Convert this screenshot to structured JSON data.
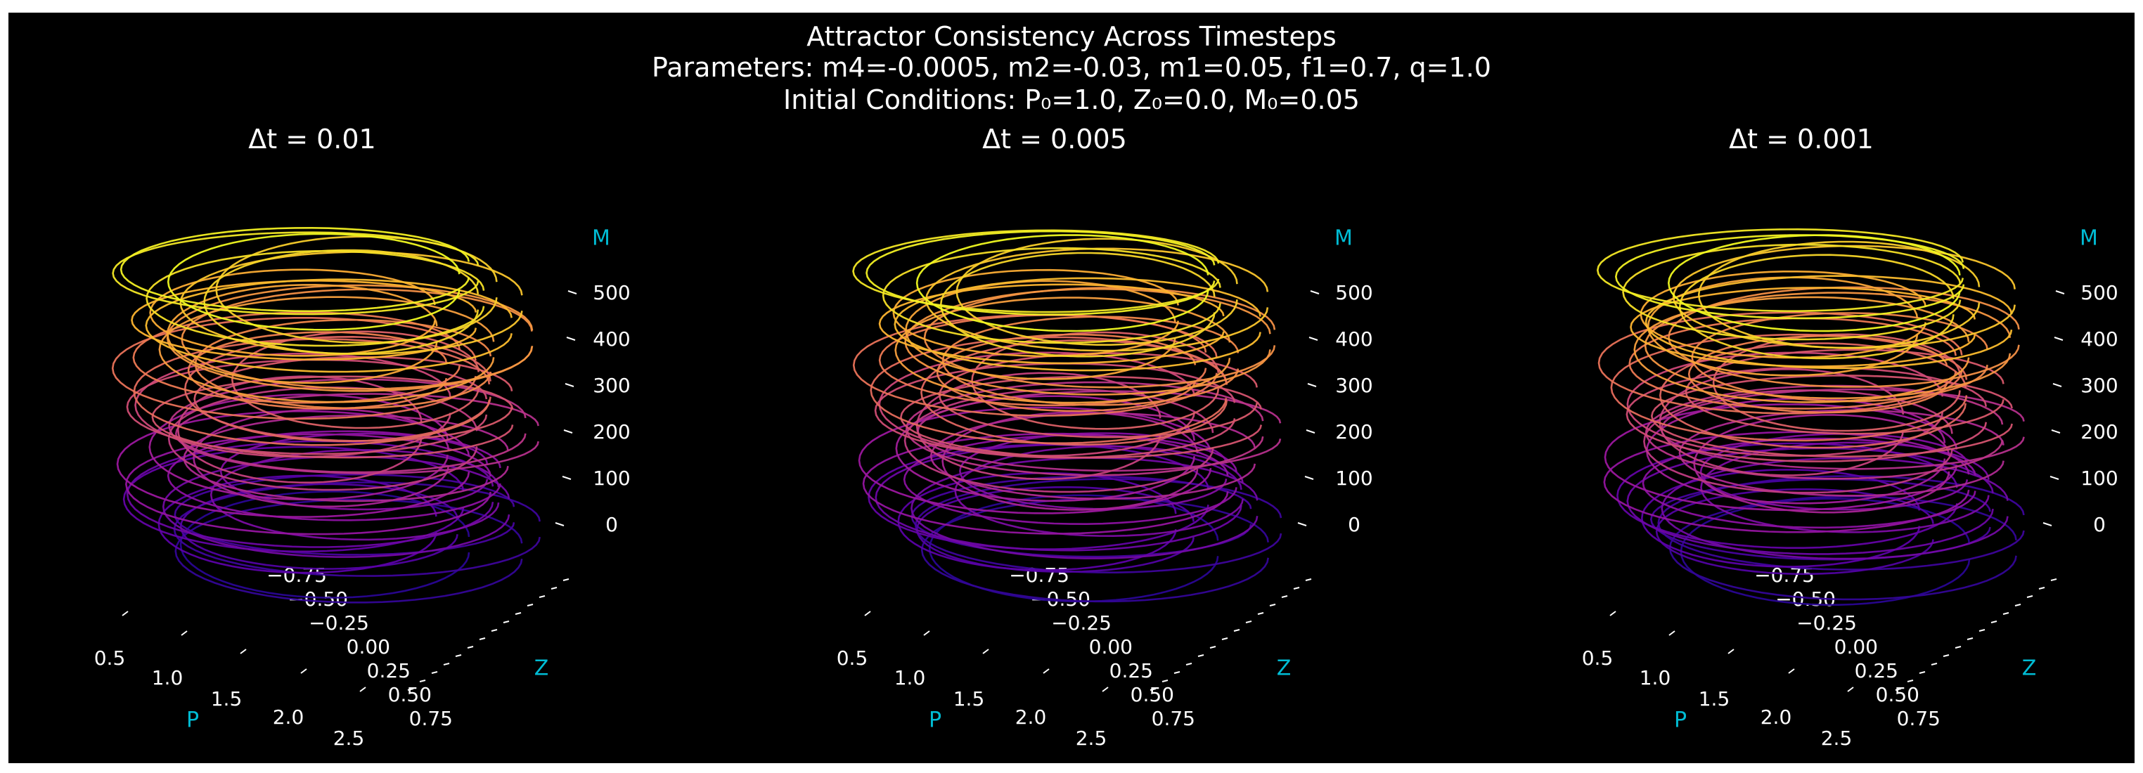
{
  "figure": {
    "title": "Attractor Consistency Across Timesteps",
    "subtitle_params": "Parameters: m4=-0.0005, m2=-0.03, m1=0.05, f1=0.7, q=1.0",
    "subtitle_ic": "Initial Conditions: P₀=1.0, Z₀=0.0, M₀=0.05",
    "background": "#000000",
    "text_color": "#ffffff",
    "axis_label_color": "#00bcd4",
    "colormap": [
      "#0d0887",
      "#5c01a6",
      "#9c179e",
      "#cc4778",
      "#ed7953",
      "#fdb42f",
      "#f0f921"
    ]
  },
  "chart_data": [
    {
      "type": "line3d",
      "title": "Δt = 0.01",
      "xlabel": "P",
      "ylabel": "Z",
      "zlabel": "M",
      "x_ticks": [
        "0.5",
        "1.0",
        "1.5",
        "2.0",
        "2.5"
      ],
      "y_ticks": [
        "−0.75",
        "−0.50",
        "−0.25",
        "0.00",
        "0.25",
        "0.50",
        "0.75"
      ],
      "z_ticks": [
        "0",
        "100",
        "200",
        "300",
        "400",
        "500"
      ],
      "xlim": [
        0.3,
        2.7
      ],
      "ylim": [
        -0.9,
        0.9
      ],
      "zlim": [
        0,
        560
      ],
      "series": [
        {
          "x_range": [
            0.3,
            2.6
          ],
          "y_range": [
            -0.8,
            0.8
          ],
          "z_range": [
            0,
            560
          ],
          "color_by": "M",
          "colormap": "plasma"
        }
      ]
    },
    {
      "type": "line3d",
      "title": "Δt = 0.005",
      "xlabel": "P",
      "ylabel": "Z",
      "zlabel": "M",
      "x_ticks": [
        "0.5",
        "1.0",
        "1.5",
        "2.0",
        "2.5"
      ],
      "y_ticks": [
        "−0.75",
        "−0.50",
        "−0.25",
        "0.00",
        "0.25",
        "0.50",
        "0.75"
      ],
      "z_ticks": [
        "0",
        "100",
        "200",
        "300",
        "400",
        "500"
      ],
      "xlim": [
        0.3,
        2.7
      ],
      "ylim": [
        -0.9,
        0.9
      ],
      "zlim": [
        0,
        560
      ],
      "series": [
        {
          "x_range": [
            0.3,
            2.6
          ],
          "y_range": [
            -0.8,
            0.8
          ],
          "z_range": [
            0,
            560
          ],
          "color_by": "M",
          "colormap": "plasma"
        }
      ]
    },
    {
      "type": "line3d",
      "title": "Δt = 0.001",
      "xlabel": "P",
      "ylabel": "Z",
      "zlabel": "M",
      "x_ticks": [
        "0.5",
        "1.0",
        "1.5",
        "2.0",
        "2.5"
      ],
      "y_ticks": [
        "−0.75",
        "−0.50",
        "−0.25",
        "0.00",
        "0.25",
        "0.50",
        "0.75"
      ],
      "z_ticks": [
        "0",
        "100",
        "200",
        "300",
        "400",
        "500"
      ],
      "xlim": [
        0.3,
        2.7
      ],
      "ylim": [
        -0.9,
        0.9
      ],
      "zlim": [
        0,
        560
      ],
      "series": [
        {
          "x_range": [
            0.3,
            2.6
          ],
          "y_range": [
            -0.8,
            0.8
          ],
          "z_range": [
            0,
            560
          ],
          "color_by": "M",
          "colormap": "plasma"
        }
      ]
    }
  ]
}
